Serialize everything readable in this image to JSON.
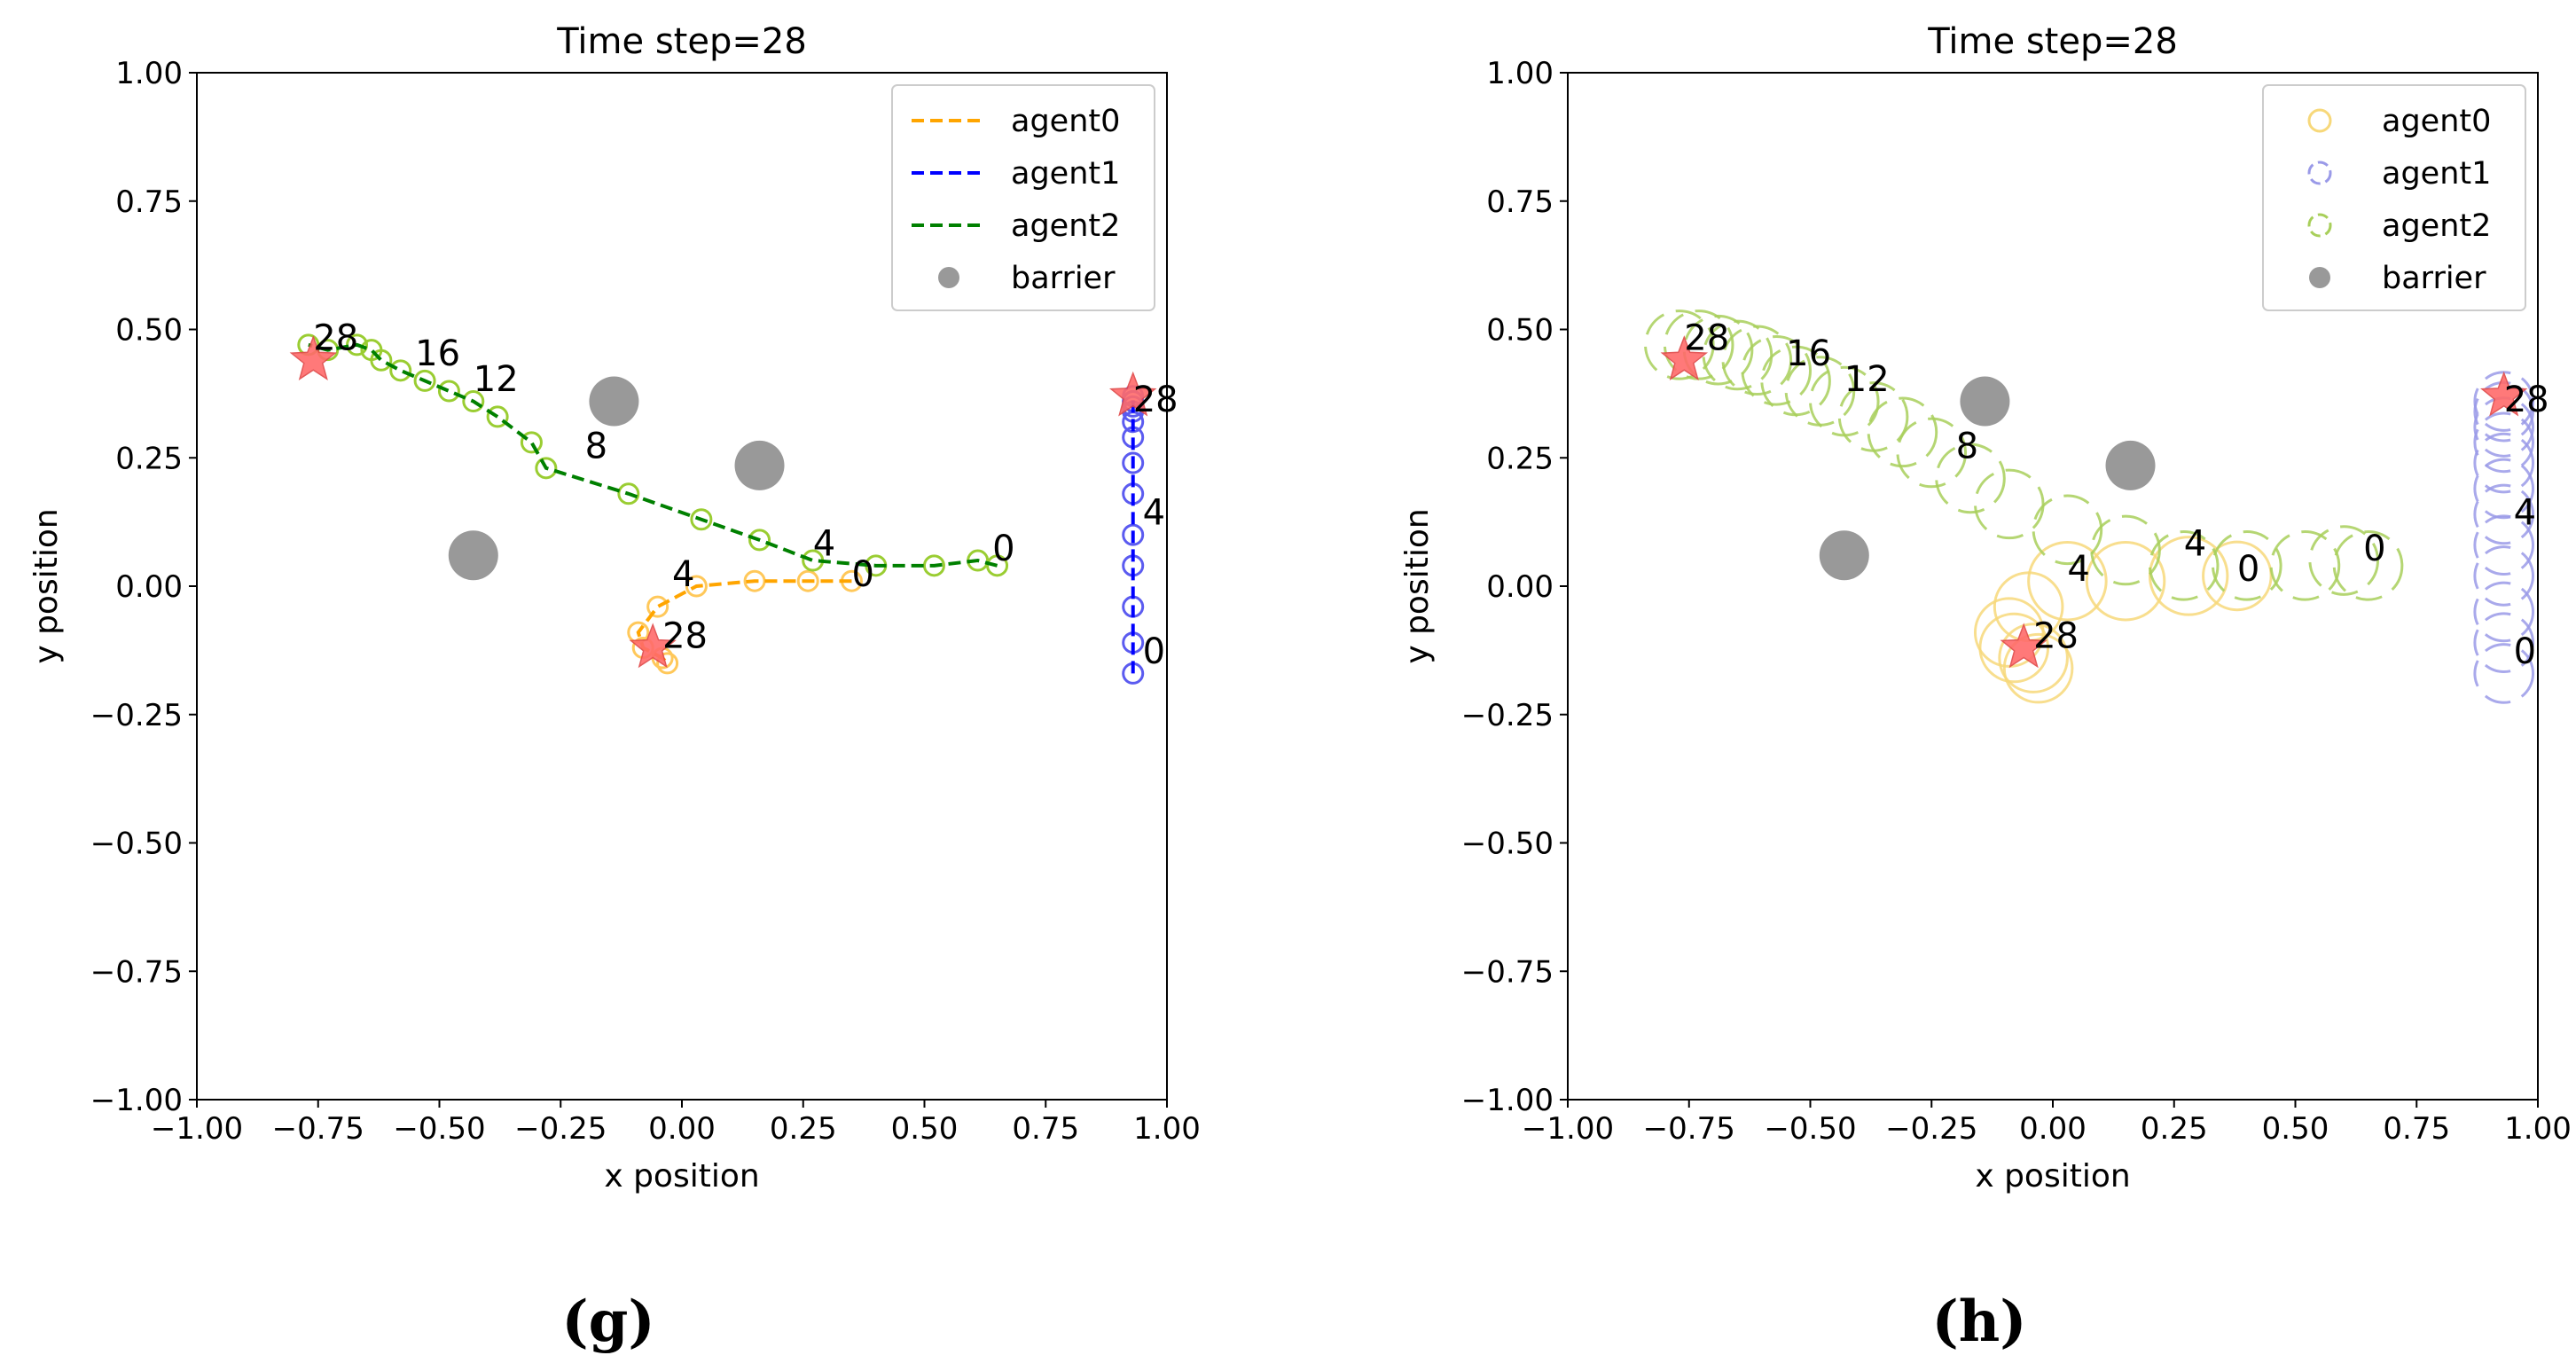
{
  "chart_data": [
    {
      "type": "scatter",
      "panel_label": "(g)",
      "title": "Time step=28",
      "xlabel": "x position",
      "ylabel": "y position",
      "xlim": [
        -1,
        1
      ],
      "ylim": [
        -1,
        1
      ],
      "xticks": [
        "−1.00",
        "−0.75",
        "−0.50",
        "−0.25",
        "0.00",
        "0.25",
        "0.50",
        "0.75",
        "1.00"
      ],
      "yticks": [
        "−1.00",
        "−0.75",
        "−0.50",
        "−0.25",
        "0.00",
        "0.25",
        "0.50",
        "0.75",
        "1.00"
      ],
      "legend": {
        "position": "top-right",
        "entries": [
          {
            "label": "agent0",
            "color": "#FFA500",
            "marker": "dashed-line"
          },
          {
            "label": "agent1",
            "color": "#0000FF",
            "marker": "dashed-line"
          },
          {
            "label": "agent2",
            "color": "#008000",
            "marker": "dashed-line"
          },
          {
            "label": "barrier",
            "color": "#999999",
            "marker": "filled-circle"
          }
        ]
      },
      "barriers": [
        {
          "x": -0.14,
          "y": 0.36
        },
        {
          "x": 0.16,
          "y": 0.235
        },
        {
          "x": -0.43,
          "y": 0.06
        }
      ],
      "series": [
        {
          "name": "agent0",
          "color": "#FFA500",
          "marker_color": "#FFC85A",
          "x": [
            0.35,
            0.26,
            0.15,
            0.03,
            -0.05,
            -0.09,
            -0.08,
            -0.04,
            -0.03
          ],
          "y": [
            0.01,
            0.01,
            0.01,
            0.0,
            -0.04,
            -0.09,
            -0.12,
            -0.14,
            -0.15
          ]
        },
        {
          "name": "agent1",
          "color": "#0000FF",
          "marker_color": "#5B5BF0",
          "x": [
            0.93,
            0.93,
            0.93,
            0.93,
            0.93,
            0.93,
            0.93,
            0.93,
            0.93,
            0.93,
            0.93,
            0.93,
            0.93,
            0.93
          ],
          "y": [
            -0.17,
            -0.11,
            -0.04,
            0.04,
            0.1,
            0.18,
            0.24,
            0.29,
            0.32,
            0.34,
            0.35,
            0.36,
            0.36,
            0.37
          ]
        },
        {
          "name": "agent2",
          "color": "#008000",
          "marker_color": "#9ACD32",
          "x": [
            0.65,
            0.61,
            0.52,
            0.4,
            0.27,
            0.16,
            0.04,
            -0.11,
            -0.28,
            -0.31,
            -0.38,
            -0.43,
            -0.48,
            -0.53,
            -0.58,
            -0.62,
            -0.64,
            -0.67,
            -0.73,
            -0.77
          ],
          "y": [
            0.04,
            0.05,
            0.04,
            0.04,
            0.05,
            0.09,
            0.13,
            0.18,
            0.23,
            0.28,
            0.33,
            0.36,
            0.38,
            0.4,
            0.42,
            0.44,
            0.46,
            0.47,
            0.46,
            0.47
          ]
        }
      ],
      "goals": [
        {
          "x": -0.76,
          "y": 0.44
        },
        {
          "x": 0.93,
          "y": 0.37
        },
        {
          "x": -0.06,
          "y": -0.12
        }
      ],
      "annotations": [
        {
          "text": "28",
          "x": -0.76,
          "y": 0.46
        },
        {
          "text": "16",
          "x": -0.55,
          "y": 0.43
        },
        {
          "text": "12",
          "x": -0.43,
          "y": 0.38
        },
        {
          "text": "8",
          "x": -0.2,
          "y": 0.25
        },
        {
          "text": "4",
          "x": 0.27,
          "y": 0.06
        },
        {
          "text": "0",
          "x": 0.64,
          "y": 0.05
        },
        {
          "text": "4",
          "x": -0.02,
          "y": 0.0
        },
        {
          "text": "0",
          "x": 0.35,
          "y": 0.0
        },
        {
          "text": "28",
          "x": -0.04,
          "y": -0.12
        },
        {
          "text": "28",
          "x": 0.93,
          "y": 0.34
        },
        {
          "text": "4",
          "x": 0.95,
          "y": 0.12
        },
        {
          "text": "0",
          "x": 0.95,
          "y": -0.15
        }
      ]
    },
    {
      "type": "scatter",
      "panel_label": "(h)",
      "title": "Time step=28",
      "xlabel": "x position",
      "ylabel": "y position",
      "xlim": [
        -1,
        1
      ],
      "ylim": [
        -1,
        1
      ],
      "xticks": [
        "−1.00",
        "−0.75",
        "−0.50",
        "−0.25",
        "0.00",
        "0.25",
        "0.50",
        "0.75",
        "1.00"
      ],
      "yticks": [
        "−1.00",
        "−0.75",
        "−0.50",
        "−0.25",
        "0.00",
        "0.25",
        "0.50",
        "0.75",
        "1.00"
      ],
      "legend": {
        "position": "top-right",
        "entries": [
          {
            "label": "agent0",
            "color": "#F7D87A",
            "marker": "open-circle"
          },
          {
            "label": "agent1",
            "color": "#9A9AE8",
            "marker": "dashed-open-circle"
          },
          {
            "label": "agent2",
            "color": "#A8CF5A",
            "marker": "dashed-open-circle"
          },
          {
            "label": "barrier",
            "color": "#999999",
            "marker": "filled-circle"
          }
        ]
      },
      "barriers": [
        {
          "x": -0.14,
          "y": 0.36
        },
        {
          "x": 0.16,
          "y": 0.235
        },
        {
          "x": -0.43,
          "y": 0.06
        }
      ],
      "series": [
        {
          "name": "agent0",
          "color": "#F7D87A",
          "x": [
            0.38,
            0.28,
            0.15,
            0.03,
            -0.05,
            -0.09,
            -0.08,
            -0.04,
            -0.03
          ],
          "y": [
            0.02,
            0.02,
            0.01,
            0.01,
            -0.04,
            -0.09,
            -0.12,
            -0.14,
            -0.16
          ],
          "r": [
            0.07,
            0.08,
            0.08,
            0.08,
            0.07,
            0.07,
            0.07,
            0.07,
            0.07
          ]
        },
        {
          "name": "agent1",
          "color": "#9A9AE8",
          "x": [
            0.93,
            0.93,
            0.93,
            0.93,
            0.93,
            0.93,
            0.93,
            0.93,
            0.93,
            0.93,
            0.93,
            0.93
          ],
          "y": [
            -0.17,
            -0.11,
            -0.05,
            0.02,
            0.08,
            0.14,
            0.19,
            0.24,
            0.28,
            0.31,
            0.34,
            0.36
          ],
          "r": [
            0.06,
            0.06,
            0.06,
            0.06,
            0.06,
            0.06,
            0.06,
            0.06,
            0.06,
            0.06,
            0.06,
            0.06
          ]
        },
        {
          "name": "agent2",
          "color": "#A8CF5A",
          "x": [
            0.65,
            0.6,
            0.52,
            0.4,
            0.27,
            0.15,
            0.03,
            -0.09,
            -0.17,
            -0.25,
            -0.31,
            -0.37,
            -0.43,
            -0.48,
            -0.53,
            -0.57,
            -0.61,
            -0.65,
            -0.69,
            -0.73,
            -0.77
          ],
          "y": [
            0.04,
            0.05,
            0.04,
            0.04,
            0.04,
            0.07,
            0.11,
            0.16,
            0.21,
            0.26,
            0.3,
            0.33,
            0.36,
            0.38,
            0.4,
            0.42,
            0.44,
            0.45,
            0.46,
            0.47,
            0.47
          ],
          "r": [
            0.07,
            0.07,
            0.07,
            0.07,
            0.07,
            0.07,
            0.07,
            0.07,
            0.07,
            0.07,
            0.07,
            0.07,
            0.07,
            0.07,
            0.07,
            0.07,
            0.07,
            0.07,
            0.07,
            0.07,
            0.07
          ]
        }
      ],
      "goals": [
        {
          "x": -0.76,
          "y": 0.44
        },
        {
          "x": 0.93,
          "y": 0.37
        },
        {
          "x": -0.06,
          "y": -0.12
        }
      ],
      "annotations": [
        {
          "text": "28",
          "x": -0.76,
          "y": 0.46
        },
        {
          "text": "16",
          "x": -0.55,
          "y": 0.43
        },
        {
          "text": "12",
          "x": -0.43,
          "y": 0.38
        },
        {
          "text": "8",
          "x": -0.2,
          "y": 0.25
        },
        {
          "text": "4",
          "x": 0.27,
          "y": 0.06
        },
        {
          "text": "0",
          "x": 0.64,
          "y": 0.05
        },
        {
          "text": "4",
          "x": 0.03,
          "y": 0.01
        },
        {
          "text": "0",
          "x": 0.38,
          "y": 0.01
        },
        {
          "text": "28",
          "x": -0.04,
          "y": -0.12
        },
        {
          "text": "28",
          "x": 0.93,
          "y": 0.34
        },
        {
          "text": "4",
          "x": 0.95,
          "y": 0.12
        },
        {
          "text": "0",
          "x": 0.95,
          "y": -0.15
        }
      ]
    }
  ]
}
